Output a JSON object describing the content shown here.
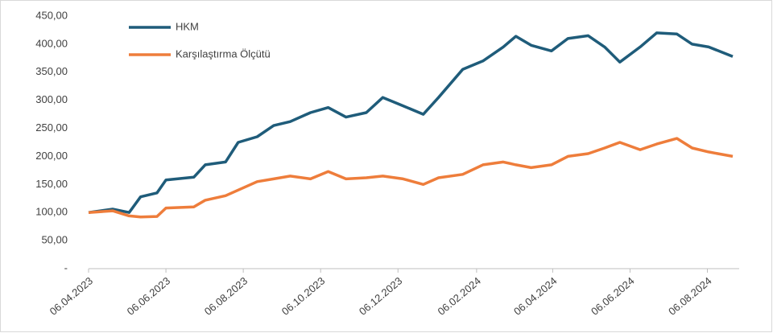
{
  "chart_data": {
    "type": "line",
    "x": [
      "06.04.2023",
      "25.04.2023",
      "08.05.2023",
      "17.05.2023",
      "30.05.2023",
      "06.06.2023",
      "28.06.2023",
      "07.07.2023",
      "23.07.2023",
      "02.08.2023",
      "17.08.2023",
      "30.08.2023",
      "12.09.2023",
      "28.09.2023",
      "12.10.2023",
      "26.10.2023",
      "11.11.2023",
      "24.11.2023",
      "10.12.2023",
      "26.12.2023",
      "07.01.2024",
      "26.01.2024",
      "11.02.2024",
      "27.02.2024",
      "08.03.2024",
      "20.03.2024",
      "05.04.2024",
      "18.04.2024",
      "04.05.2024",
      "17.05.2024",
      "29.05.2024",
      "14.06.2024",
      "27.06.2024",
      "13.07.2024",
      "25.07.2024",
      "07.08.2024",
      "26.08.2024"
    ],
    "series": [
      {
        "name": "HKM",
        "color": "#1f5c7a",
        "values": [
          100,
          106,
          100,
          128,
          135,
          158,
          163,
          185,
          190,
          225,
          235,
          255,
          262,
          278,
          287,
          270,
          278,
          305,
          290,
          275,
          305,
          355,
          370,
          395,
          414,
          398,
          388,
          410,
          415,
          395,
          368,
          395,
          420,
          418,
          400,
          395,
          378
        ]
      },
      {
        "name": "Karşılaştırma Ölçütü",
        "color": "#ee7d3b",
        "values": [
          100,
          103,
          94,
          92,
          93,
          108,
          110,
          122,
          130,
          140,
          155,
          160,
          165,
          160,
          173,
          160,
          162,
          165,
          160,
          150,
          162,
          168,
          185,
          190,
          185,
          180,
          185,
          200,
          205,
          215,
          225,
          212,
          222,
          232,
          215,
          208,
          200
        ]
      }
    ],
    "xlim": [
      "06.04.2023",
      "26.08.2024"
    ],
    "xticks": [
      "06.04.2023",
      "06.06.2023",
      "06.08.2023",
      "06.10.2023",
      "06.12.2023",
      "06.02.2024",
      "06.04.2024",
      "06.06.2024",
      "06.08.2024"
    ],
    "ylim": [
      0,
      450
    ],
    "yticks": [
      {
        "value": 0,
        "label": "-"
      },
      {
        "value": 50,
        "label": "50,00"
      },
      {
        "value": 100,
        "label": "100,00"
      },
      {
        "value": 150,
        "label": "150,00"
      },
      {
        "value": 200,
        "label": "200,00"
      },
      {
        "value": 250,
        "label": "250,00"
      },
      {
        "value": 300,
        "label": "300,00"
      },
      {
        "value": 350,
        "label": "350,00"
      },
      {
        "value": 400,
        "label": "400,00"
      },
      {
        "value": 450,
        "label": "450,00"
      }
    ],
    "legend": "top-left"
  }
}
